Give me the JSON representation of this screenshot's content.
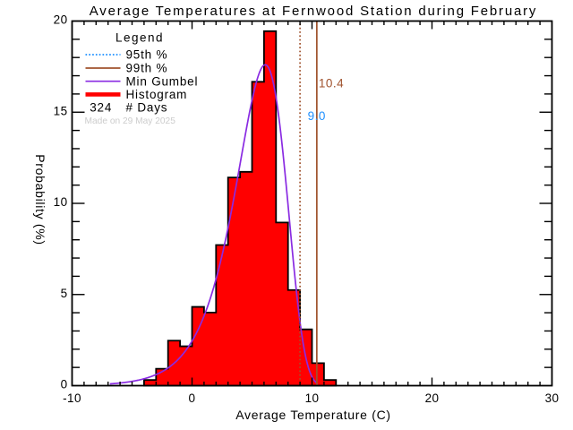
{
  "title": "Average Temperatures at Fernwood Station during February",
  "axes": {
    "xlabel": "Average Temperature (C)",
    "ylabel": "Probability (%)",
    "xlim": [
      -10,
      30
    ],
    "ylim": [
      0,
      20
    ],
    "x_major_ticks": [
      "-10",
      "0",
      "10",
      "20",
      "30"
    ],
    "y_major_ticks": [
      "0",
      "5",
      "10",
      "15",
      "20"
    ],
    "x_minor_step": 1,
    "y_minor_step": 1
  },
  "legend": {
    "title": "Legend",
    "entries": [
      {
        "label": "95th %",
        "style": "dotted",
        "color": "#1E90FF"
      },
      {
        "label": "99th %",
        "style": "solid",
        "color": "#A0522D"
      },
      {
        "label": "Min Gumbel",
        "style": "solid",
        "color": "#8A2BE2"
      },
      {
        "label": "Histogram",
        "style": "thick",
        "color": "#FF0000"
      }
    ],
    "count_value": "324",
    "count_label": "# Days",
    "made_on": "Made on 29 May 2025"
  },
  "chart_data": {
    "type": "bar",
    "title": "Average Temperatures at Fernwood Station during February",
    "xlabel": "Average Temperature (C)",
    "ylabel": "Probability (%)",
    "xlim": [
      -10,
      30
    ],
    "ylim": [
      0,
      20
    ],
    "histogram": {
      "bin_start": -4,
      "bin_width": 1,
      "bin_left_edges": [
        -4,
        -3,
        -2,
        -1,
        0,
        1,
        2,
        3,
        4,
        5,
        6,
        7,
        8,
        9,
        10,
        11
      ],
      "counts": [
        1,
        3,
        8,
        7,
        14,
        13,
        25,
        37,
        38,
        54,
        63,
        29,
        17,
        10,
        4,
        1
      ],
      "total_days": 324,
      "percent": [
        0.309,
        0.926,
        2.469,
        2.16,
        4.321,
        4.012,
        7.716,
        11.42,
        11.728,
        16.667,
        19.444,
        8.951,
        5.247,
        3.086,
        1.235,
        0.309
      ],
      "fill_color": "#FF0000",
      "outline_color": "#000000"
    },
    "gumbel_fit": {
      "name": "Min Gumbel",
      "mu": 6.1,
      "beta": 2.09,
      "amplitude_pct": 100,
      "t_min": -6.85,
      "t_max": 10.42,
      "color": "#8A2BE2"
    },
    "percentile_lines": [
      {
        "name": "95th %",
        "x": 9.0,
        "label": "9.0",
        "style": "dotted",
        "line_color": "#A0522D",
        "label_color": "#1E90FF",
        "label_y_pct": 14.57
      },
      {
        "name": "99th %",
        "x": 10.4,
        "label": "10.4",
        "style": "solid",
        "line_color": "#A0522D",
        "label_color": "#A0522D",
        "label_y_pct": 16.36
      }
    ],
    "grid": false,
    "legend_position": "upper-left-inside"
  }
}
